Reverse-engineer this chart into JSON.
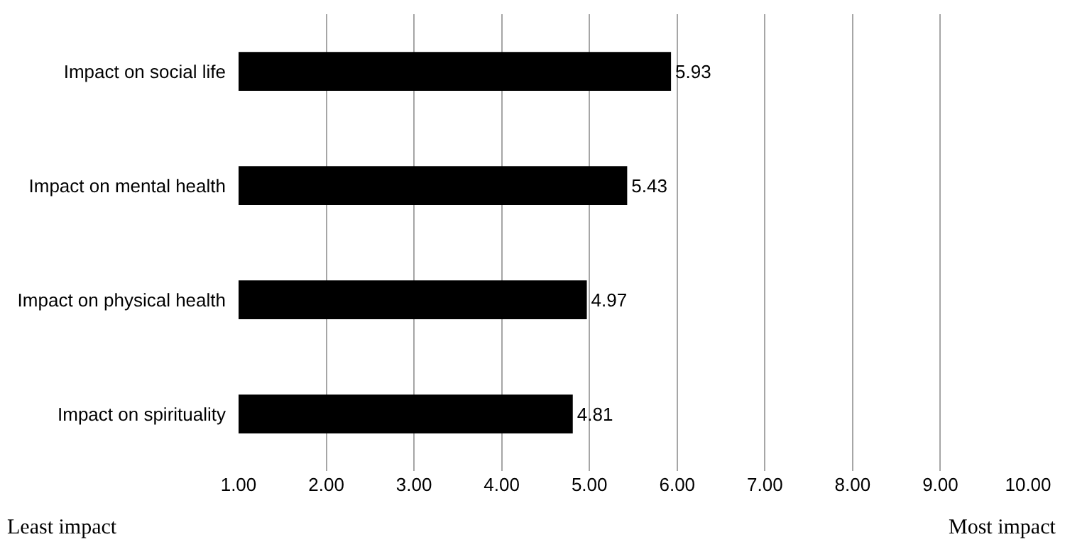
{
  "chart_data": {
    "type": "bar",
    "orientation": "horizontal",
    "categories": [
      "Impact on social life",
      "Impact on mental health",
      "Impact on physical health",
      "Impact on spirituality"
    ],
    "values": [
      5.93,
      5.43,
      4.97,
      4.81
    ],
    "color": "#000000",
    "xlim": [
      1,
      10
    ],
    "xticks": [
      {
        "value": 1,
        "label": "1.00"
      },
      {
        "value": 2,
        "label": "2.00"
      },
      {
        "value": 3,
        "label": "3.00"
      },
      {
        "value": 4,
        "label": "4.00"
      },
      {
        "value": 5,
        "label": "5.00"
      },
      {
        "value": 6,
        "label": "6.00"
      },
      {
        "value": 7,
        "label": "7.00"
      },
      {
        "value": 8,
        "label": "8.00"
      },
      {
        "value": 9,
        "label": "9.00"
      },
      {
        "value": 10,
        "label": "10.00"
      }
    ],
    "grid": "x",
    "data_labels": true,
    "annotations": [
      "Least impact",
      "Most impact"
    ]
  }
}
